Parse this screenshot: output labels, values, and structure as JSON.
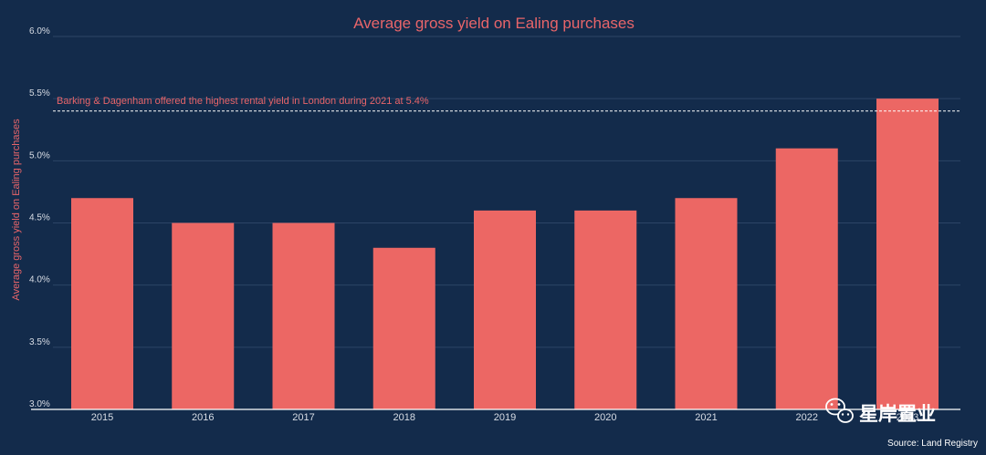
{
  "chart_data": {
    "type": "bar",
    "title": "Average gross yield on Ealing purchases",
    "xlabel": "",
    "ylabel": "Average gross yield on Ealing purchases",
    "categories": [
      "2015",
      "2016",
      "2017",
      "2018",
      "2019",
      "2020",
      "2021",
      "2022",
      "2023"
    ],
    "values": [
      4.7,
      4.5,
      4.5,
      4.3,
      4.6,
      4.6,
      4.7,
      5.1,
      5.5
    ],
    "ylim": [
      3.0,
      6.0
    ],
    "yticks": [
      {
        "value": 3.0,
        "label": "3.0%"
      },
      {
        "value": 3.5,
        "label": "3.5%"
      },
      {
        "value": 4.0,
        "label": "4.0%"
      },
      {
        "value": 4.5,
        "label": "4.5%"
      },
      {
        "value": 5.0,
        "label": "5.0%"
      },
      {
        "value": 5.5,
        "label": "5.5%"
      },
      {
        "value": 6.0,
        "label": "6.0%"
      }
    ],
    "grid": true,
    "reference_line": {
      "value": 5.4,
      "label": "Barking & Dagenham offered the highest rental yield in London during 2021 at 5.4%"
    },
    "source": "Source: Land Registry"
  },
  "colors": {
    "background": "#132b4b",
    "bar": "#ec6764",
    "accent_text": "#e8656a",
    "gridline": "#2c4566",
    "tick_text": "#d8dde5"
  },
  "watermark": {
    "text": "星岸置业",
    "icon": "wechat-icon"
  }
}
